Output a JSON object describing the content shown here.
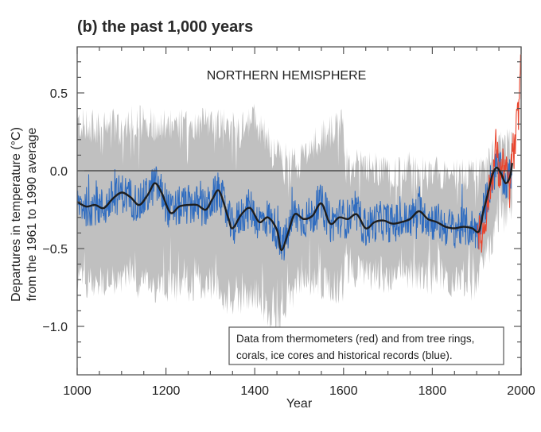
{
  "chart_data": {
    "type": "line",
    "title": "(b) the past 1,000 years",
    "annotation": "NORTHERN HEMISPHERE",
    "xlabel": "Year",
    "ylabel_line1": "Departures in temperature (°C)",
    "ylabel_line2": "from the 1961 to 1990 average",
    "xlim": [
      1000,
      2000
    ],
    "ylim": [
      -1.3,
      0.8
    ],
    "x_ticks": [
      1000,
      1200,
      1400,
      1600,
      1800,
      2000
    ],
    "x_tick_labels": [
      "1000",
      "1200",
      "1400",
      "1600",
      "1800",
      "2000"
    ],
    "y_ticks": [
      0.5,
      0.0,
      -0.5,
      -1.0
    ],
    "y_tick_labels": [
      "0.5",
      "0.0",
      "−0.5",
      "−1.0"
    ],
    "reference_line": 0.0,
    "legend_note_line1": "Data from thermometers (red) and from tree rings,",
    "legend_note_line2": "corals, ice cores and historical records (blue).",
    "colors": {
      "proxy": "#2f6cc0",
      "instrumental": "#e8452e",
      "smoothed": "#1e1e1e",
      "uncertainty": "#c0c0c0"
    },
    "series": [
      {
        "name": "Smoothed reconstruction (50-yr)",
        "x": [
          1000,
          1020,
          1040,
          1060,
          1080,
          1100,
          1120,
          1140,
          1160,
          1175,
          1190,
          1210,
          1230,
          1250,
          1270,
          1290,
          1305,
          1320,
          1340,
          1350,
          1370,
          1390,
          1410,
          1430,
          1450,
          1460,
          1475,
          1490,
          1510,
          1530,
          1550,
          1570,
          1590,
          1610,
          1630,
          1650,
          1670,
          1690,
          1710,
          1730,
          1750,
          1770,
          1790,
          1810,
          1830,
          1850,
          1870,
          1890,
          1905,
          1915,
          1925,
          1935,
          1945,
          1955,
          1965,
          1975,
          1980
        ],
        "y": [
          -0.2,
          -0.23,
          -0.22,
          -0.24,
          -0.18,
          -0.14,
          -0.17,
          -0.22,
          -0.15,
          -0.08,
          -0.14,
          -0.27,
          -0.23,
          -0.22,
          -0.22,
          -0.25,
          -0.18,
          -0.13,
          -0.3,
          -0.37,
          -0.28,
          -0.24,
          -0.33,
          -0.3,
          -0.38,
          -0.51,
          -0.4,
          -0.28,
          -0.31,
          -0.29,
          -0.21,
          -0.34,
          -0.3,
          -0.31,
          -0.28,
          -0.37,
          -0.33,
          -0.32,
          -0.34,
          -0.33,
          -0.31,
          -0.26,
          -0.31,
          -0.33,
          -0.36,
          -0.37,
          -0.36,
          -0.37,
          -0.39,
          -0.26,
          -0.15,
          -0.03,
          0.02,
          -0.02,
          -0.08,
          -0.04,
          0.05
        ]
      },
      {
        "name": "Proxy reconstruction (blue)",
        "x_range": [
          1000,
          1980
        ]
      },
      {
        "name": "Instrumental record (red)",
        "x_range": [
          1902,
          1999
        ],
        "x": [
          1902,
          1910,
          1920,
          1930,
          1940,
          1944,
          1950,
          1960,
          1970,
          1975,
          1980,
          1985,
          1990,
          1995,
          1998
        ],
        "y": [
          -0.35,
          -0.45,
          -0.3,
          -0.1,
          0.05,
          0.2,
          -0.05,
          0.05,
          -0.05,
          -0.15,
          0.15,
          0.1,
          0.3,
          0.4,
          0.65
        ]
      },
      {
        "name": "Uncertainty band (grey, 95% range)",
        "x": [
          1000,
          1050,
          1100,
          1150,
          1200,
          1250,
          1300,
          1350,
          1400,
          1450,
          1500,
          1550,
          1600,
          1601,
          1650,
          1700,
          1750,
          1800,
          1850,
          1900,
          1950,
          1980
        ],
        "upper": [
          0.3,
          0.28,
          0.3,
          0.33,
          0.28,
          0.3,
          0.32,
          0.28,
          0.33,
          0.1,
          0.05,
          0.22,
          0.3,
          0.08,
          0.02,
          0.0,
          0.02,
          0.0,
          -0.03,
          -0.02,
          0.15,
          0.17
        ],
        "lower": [
          -0.7,
          -0.72,
          -0.7,
          -0.72,
          -0.76,
          -0.74,
          -0.72,
          -0.86,
          -0.78,
          -0.98,
          -0.7,
          -0.72,
          -0.76,
          -0.62,
          -0.66,
          -0.68,
          -0.66,
          -0.7,
          -0.72,
          -0.74,
          -0.3,
          -0.28
        ]
      }
    ],
    "grid": false
  }
}
